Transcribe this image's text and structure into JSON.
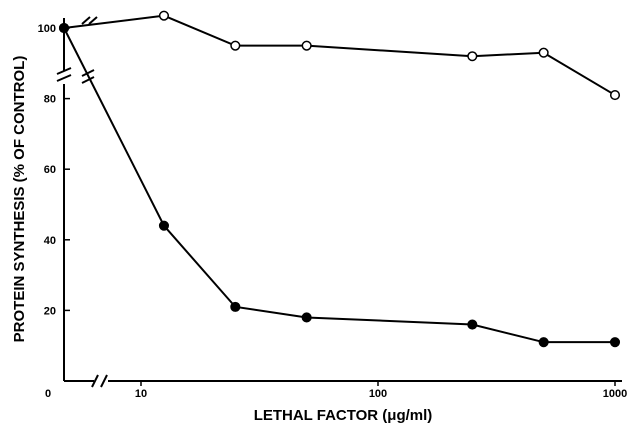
{
  "chart_data": {
    "type": "line",
    "title": "",
    "xlabel": "LETHAL FACTOR (μg/ml)",
    "ylabel": "PROTEIN SYNTHESIS (% OF CONTROL)",
    "xscale": "log",
    "x_axis_break": true,
    "y_axis_break": true,
    "xlim": [
      0,
      1000
    ],
    "ylim": [
      0,
      100
    ],
    "x_ticks": [
      "0",
      "10",
      "100",
      "1000"
    ],
    "y_ticks": [
      "0",
      "20",
      "40",
      "60",
      "80",
      "100"
    ],
    "grid": false,
    "legend": "none",
    "series": [
      {
        "marker": "open-circle",
        "x": [
          0,
          12.5,
          25,
          50,
          250,
          500,
          1000
        ],
        "y": [
          100,
          103.5,
          95,
          95,
          92,
          93,
          81
        ]
      },
      {
        "marker": "filled-circle",
        "x": [
          0,
          12.5,
          25,
          50,
          250,
          500,
          1000
        ],
        "y": [
          100,
          44,
          21,
          18,
          16,
          11,
          11
        ]
      }
    ]
  }
}
